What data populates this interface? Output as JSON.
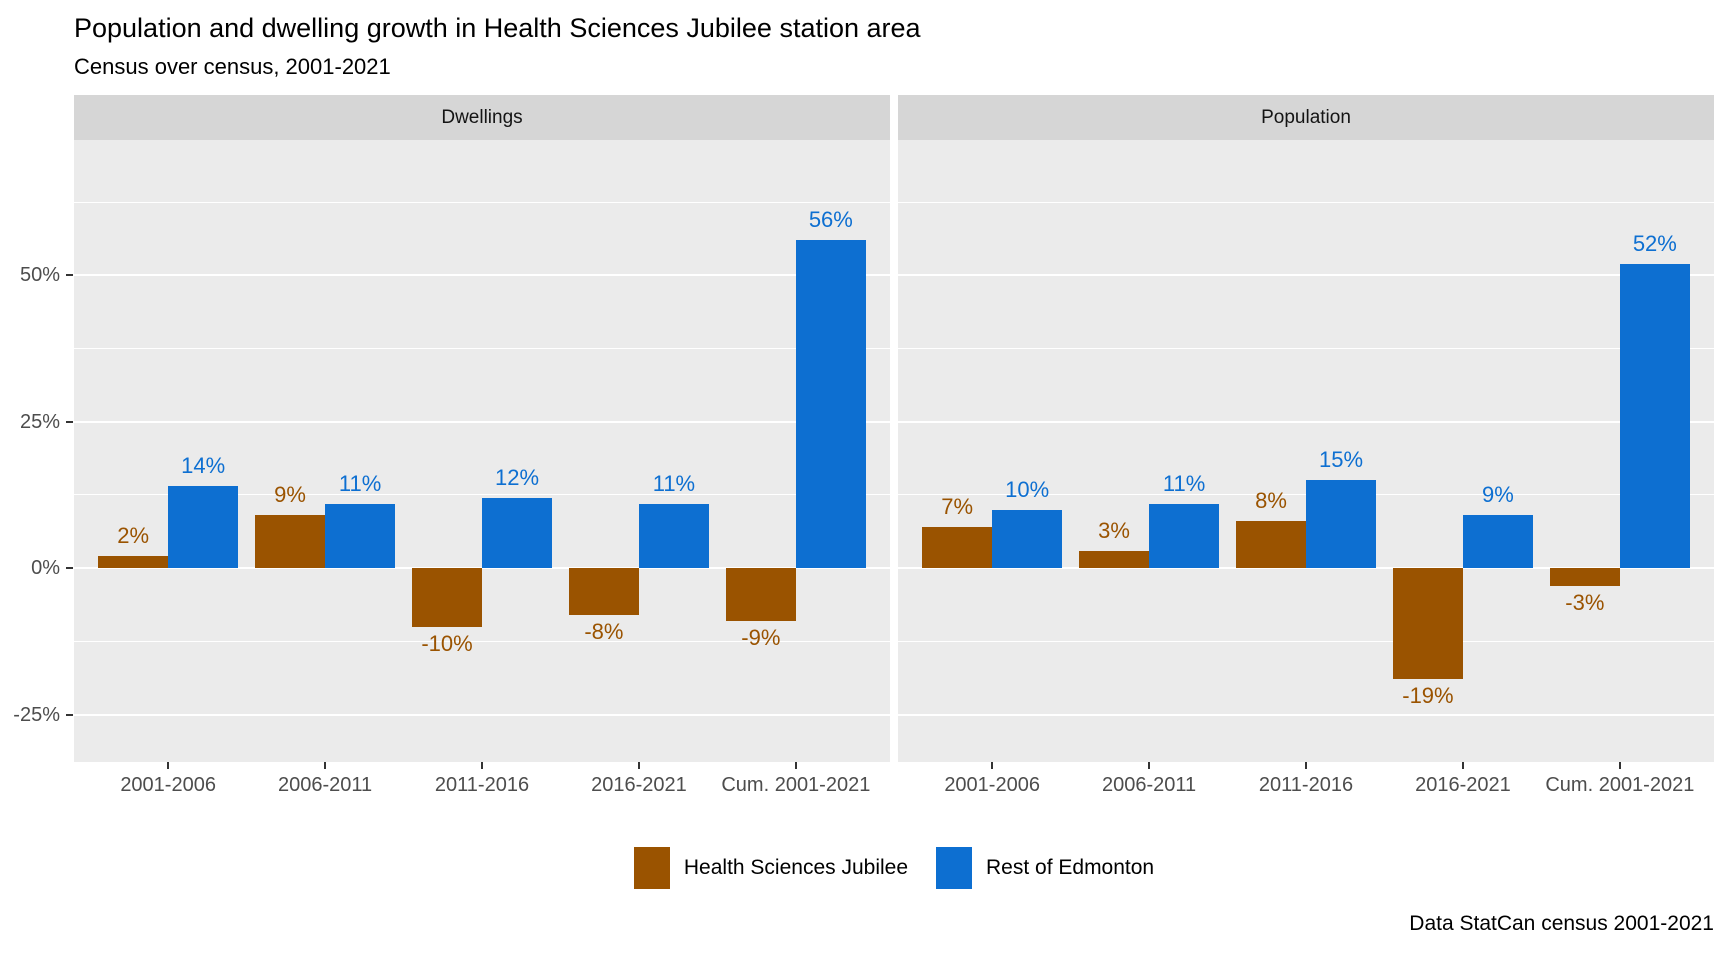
{
  "title": "Population and dwelling growth in Health Sciences Jubilee station area",
  "subtitle": "Census over census, 2001-2021",
  "caption": "Data StatCan census 2001-2021",
  "legend": {
    "items": [
      {
        "label": "Health Sciences Jubilee",
        "color": "#9a5300"
      },
      {
        "label": "Rest of Edmonton",
        "color": "#0d6fd1"
      }
    ]
  },
  "colors": {
    "panel_background": "#ebebeb",
    "strip_background": "#d6d6d6",
    "gridline": "#ffffff",
    "axis_text": "#4d4d4d",
    "series_health_sciences_jubilee": "#9a5300",
    "series_rest_of_edmonton": "#0d6fd1"
  },
  "chart_data": {
    "type": "bar",
    "title": "Population and dwelling growth in Health Sciences Jubilee station area",
    "subtitle": "Census over census, 2001-2021",
    "caption": "Data StatCan census 2001-2021",
    "grid": true,
    "legend_position": "bottom",
    "unit": "%",
    "categories": [
      "2001-2006",
      "2006-2011",
      "2011-2016",
      "2016-2021",
      "Cum. 2001-2021"
    ],
    "y_axis": {
      "ticks": [
        {
          "value": -25,
          "label": "-25%"
        },
        {
          "value": 0,
          "label": "0%"
        },
        {
          "value": 25,
          "label": "25%"
        },
        {
          "value": 50,
          "label": "50%"
        }
      ],
      "minor_ticks": [
        -12.5,
        12.5,
        37.5,
        62.5
      ],
      "ylim": [
        -33.1,
        73.1
      ]
    },
    "facets": [
      {
        "label": "Dwellings",
        "series": [
          {
            "name": "Health Sciences Jubilee",
            "color": "#9a5300",
            "values": [
              2,
              9,
              -10,
              -8,
              -9
            ],
            "labels": [
              "2%",
              "9%",
              "-10%",
              "-8%",
              "-9%"
            ]
          },
          {
            "name": "Rest of Edmonton",
            "color": "#0d6fd1",
            "values": [
              14,
              11,
              12,
              11,
              56
            ],
            "labels": [
              "14%",
              "11%",
              "12%",
              "11%",
              "56%"
            ]
          }
        ]
      },
      {
        "label": "Population",
        "series": [
          {
            "name": "Health Sciences Jubilee",
            "color": "#9a5300",
            "values": [
              7,
              3,
              8,
              -19,
              -3
            ],
            "labels": [
              "7%",
              "3%",
              "8%",
              "-19%",
              "-3%"
            ]
          },
          {
            "name": "Rest of Edmonton",
            "color": "#0d6fd1",
            "values": [
              10,
              11,
              15,
              9,
              52
            ],
            "labels": [
              "10%",
              "11%",
              "15%",
              "9%",
              "52%"
            ]
          }
        ]
      }
    ]
  }
}
